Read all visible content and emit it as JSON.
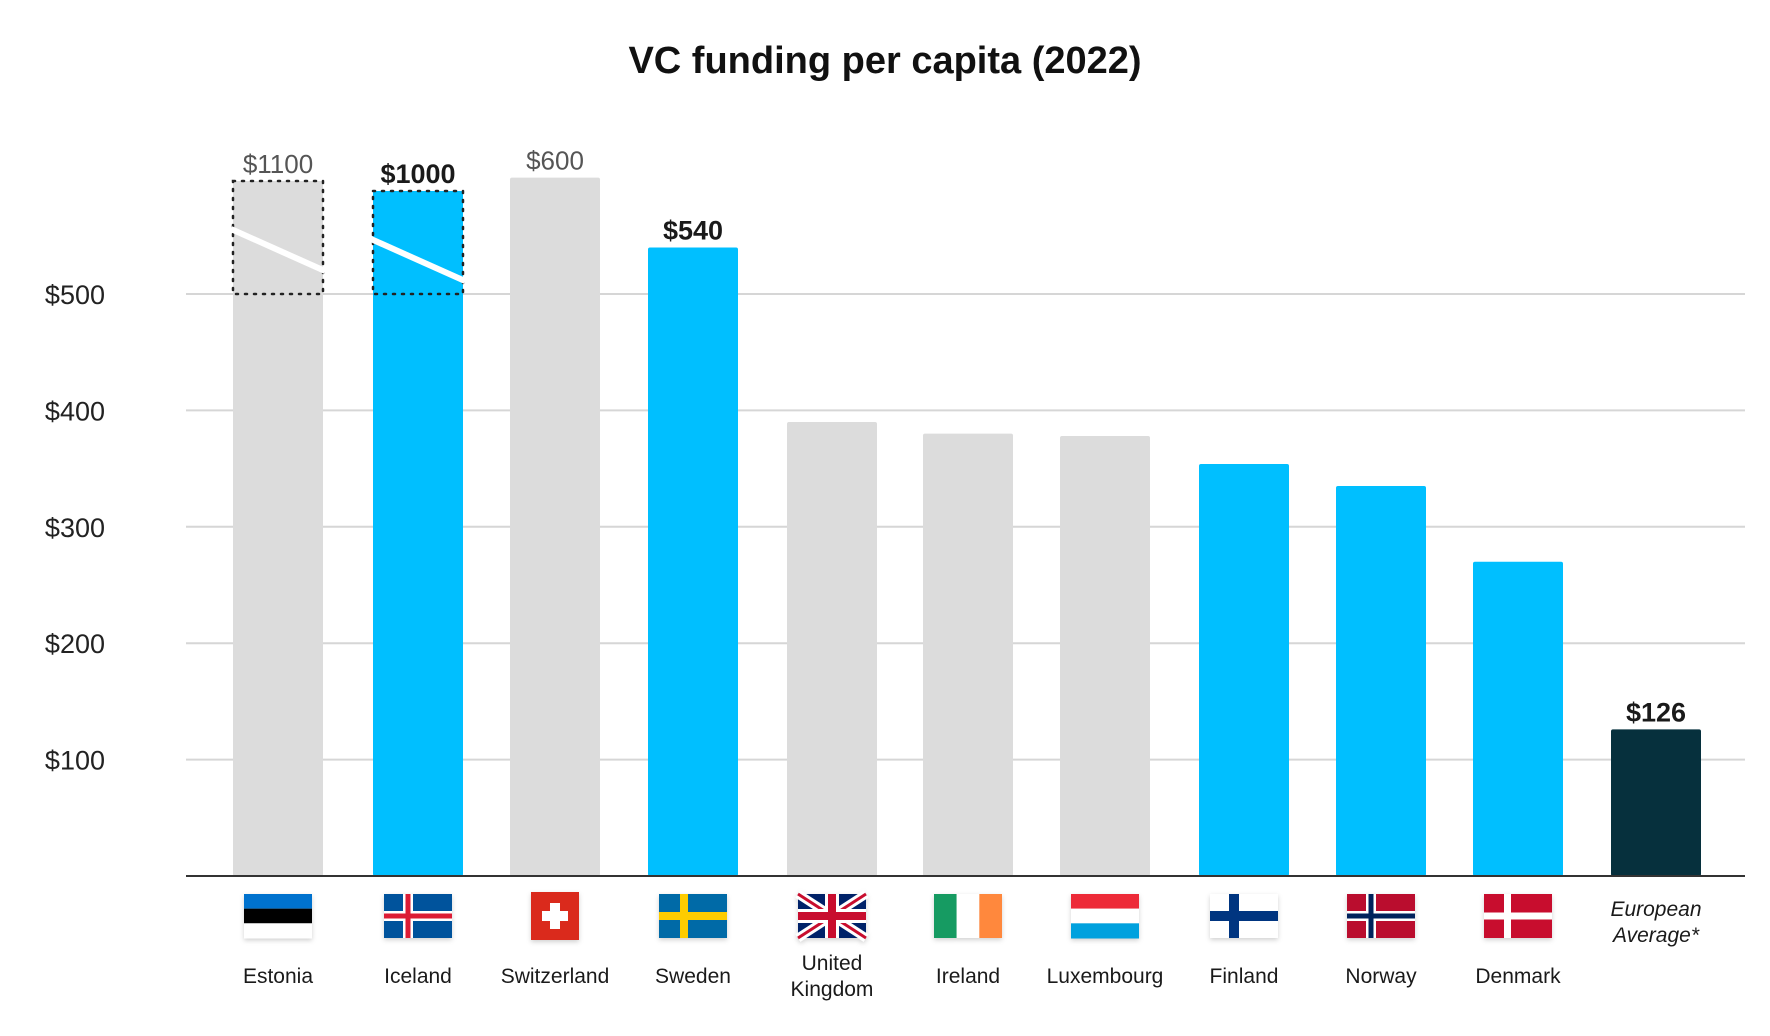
{
  "chart_data": {
    "type": "bar",
    "title": "VC funding per capita (2022)",
    "xlabel": "",
    "ylabel": "",
    "ylim": [
      0,
      500
    ],
    "yticks": [
      100,
      200,
      300,
      400,
      500
    ],
    "ytick_labels": [
      "$100",
      "$200",
      "$300",
      "$400",
      "$500"
    ],
    "grid": true,
    "categories": [
      "Estonia",
      "Iceland",
      "Switzerland",
      "Sweden",
      "United Kingdom",
      "Ireland",
      "Luxembourg",
      "Finland",
      "Norway",
      "Denmark",
      "European Average*"
    ],
    "category_label_lines": [
      [
        "Estonia"
      ],
      [
        "Iceland"
      ],
      [
        "Switzerland"
      ],
      [
        "Sweden"
      ],
      [
        "United",
        "Kingdom"
      ],
      [
        "Ireland"
      ],
      [
        "Luxembourg"
      ],
      [
        "Finland"
      ],
      [
        "Norway"
      ],
      [
        "Denmark"
      ],
      [
        "European",
        "Average*"
      ]
    ],
    "values": [
      1100,
      1000,
      600,
      540,
      390,
      380,
      378,
      354,
      335,
      270,
      126
    ],
    "data_labels": [
      "$1100",
      "$1000",
      "$600",
      "$540",
      "",
      "",
      "",
      "",
      "",
      "",
      "$126"
    ],
    "bar_colors": [
      "#dcdcdc",
      "#00bfff",
      "#dcdcdc",
      "#00bfff",
      "#dcdcdc",
      "#dcdcdc",
      "#dcdcdc",
      "#00bfff",
      "#00bfff",
      "#00bfff",
      "#06303d"
    ],
    "label_bold": [
      false,
      true,
      false,
      true,
      false,
      false,
      false,
      false,
      false,
      false,
      true
    ],
    "axis_break": [
      true,
      true,
      false,
      false,
      false,
      false,
      false,
      false,
      false,
      false,
      false
    ],
    "flags": [
      "estonia-flag-icon",
      "iceland-flag-icon",
      "switzerland-flag-icon",
      "sweden-flag-icon",
      "uk-flag-icon",
      "ireland-flag-icon",
      "luxembourg-flag-icon",
      "finland-flag-icon",
      "norway-flag-icon",
      "denmark-flag-icon",
      ""
    ]
  }
}
